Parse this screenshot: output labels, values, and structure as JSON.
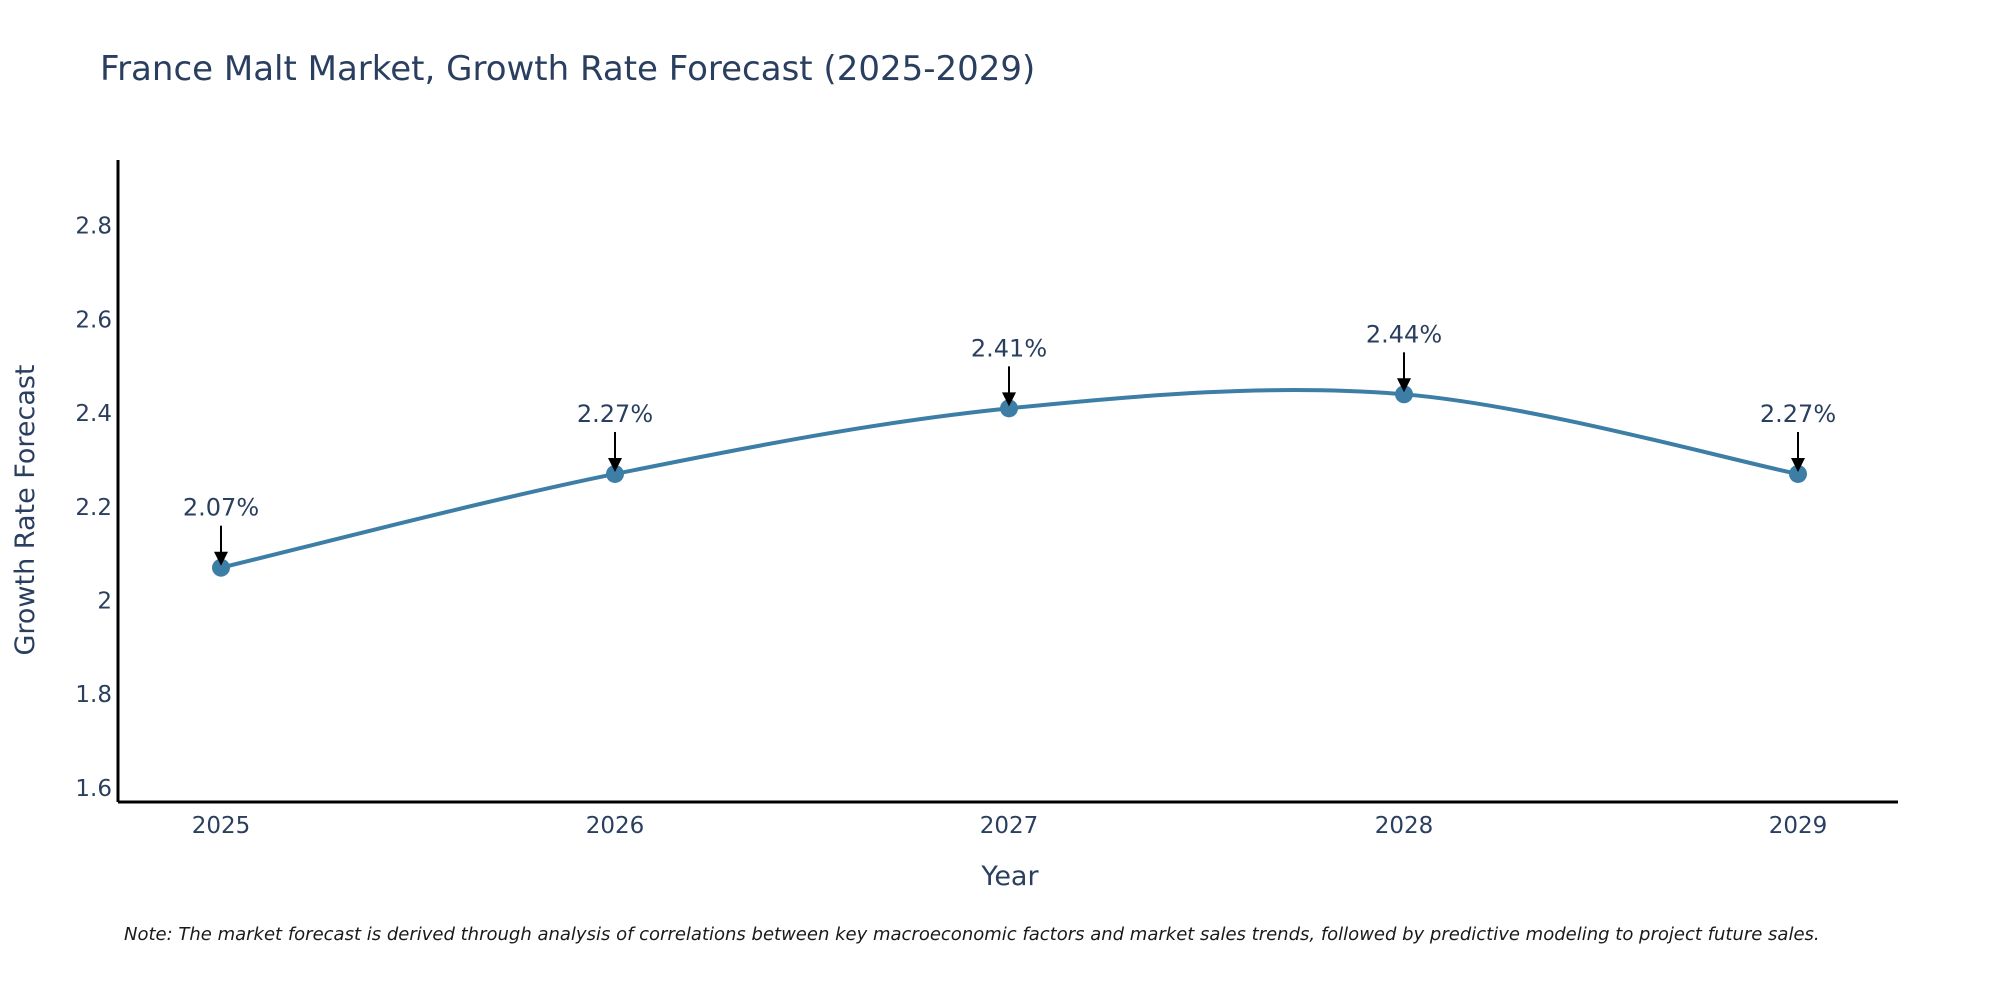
{
  "chart_data": {
    "type": "line",
    "title": "France Malt Market, Growth Rate Forecast (2025-2029)",
    "xlabel": "Year",
    "ylabel": "Growth Rate Forecast",
    "categories": [
      "2025",
      "2026",
      "2027",
      "2028",
      "2029"
    ],
    "series": [
      {
        "name": "Growth Rate Forecast",
        "values": [
          2.07,
          2.27,
          2.41,
          2.44,
          2.27
        ],
        "color": "#3d7ea6"
      }
    ],
    "annotations": [
      "2.07%",
      "2.27%",
      "2.41%",
      "2.44%",
      "2.27%"
    ],
    "ylim": [
      1.57,
      2.94
    ],
    "yticks": [
      1.6,
      1.8,
      2,
      2.2,
      2.4,
      2.6,
      2.8
    ],
    "ytick_labels": [
      "1.6",
      "1.8",
      "2",
      "2.2",
      "2.4",
      "2.6",
      "2.8"
    ],
    "grid": false,
    "note": "Note: The market forecast is derived through analysis of correlations between key macroeconomic factors and market sales trends, followed by predictive modeling to project future sales."
  }
}
